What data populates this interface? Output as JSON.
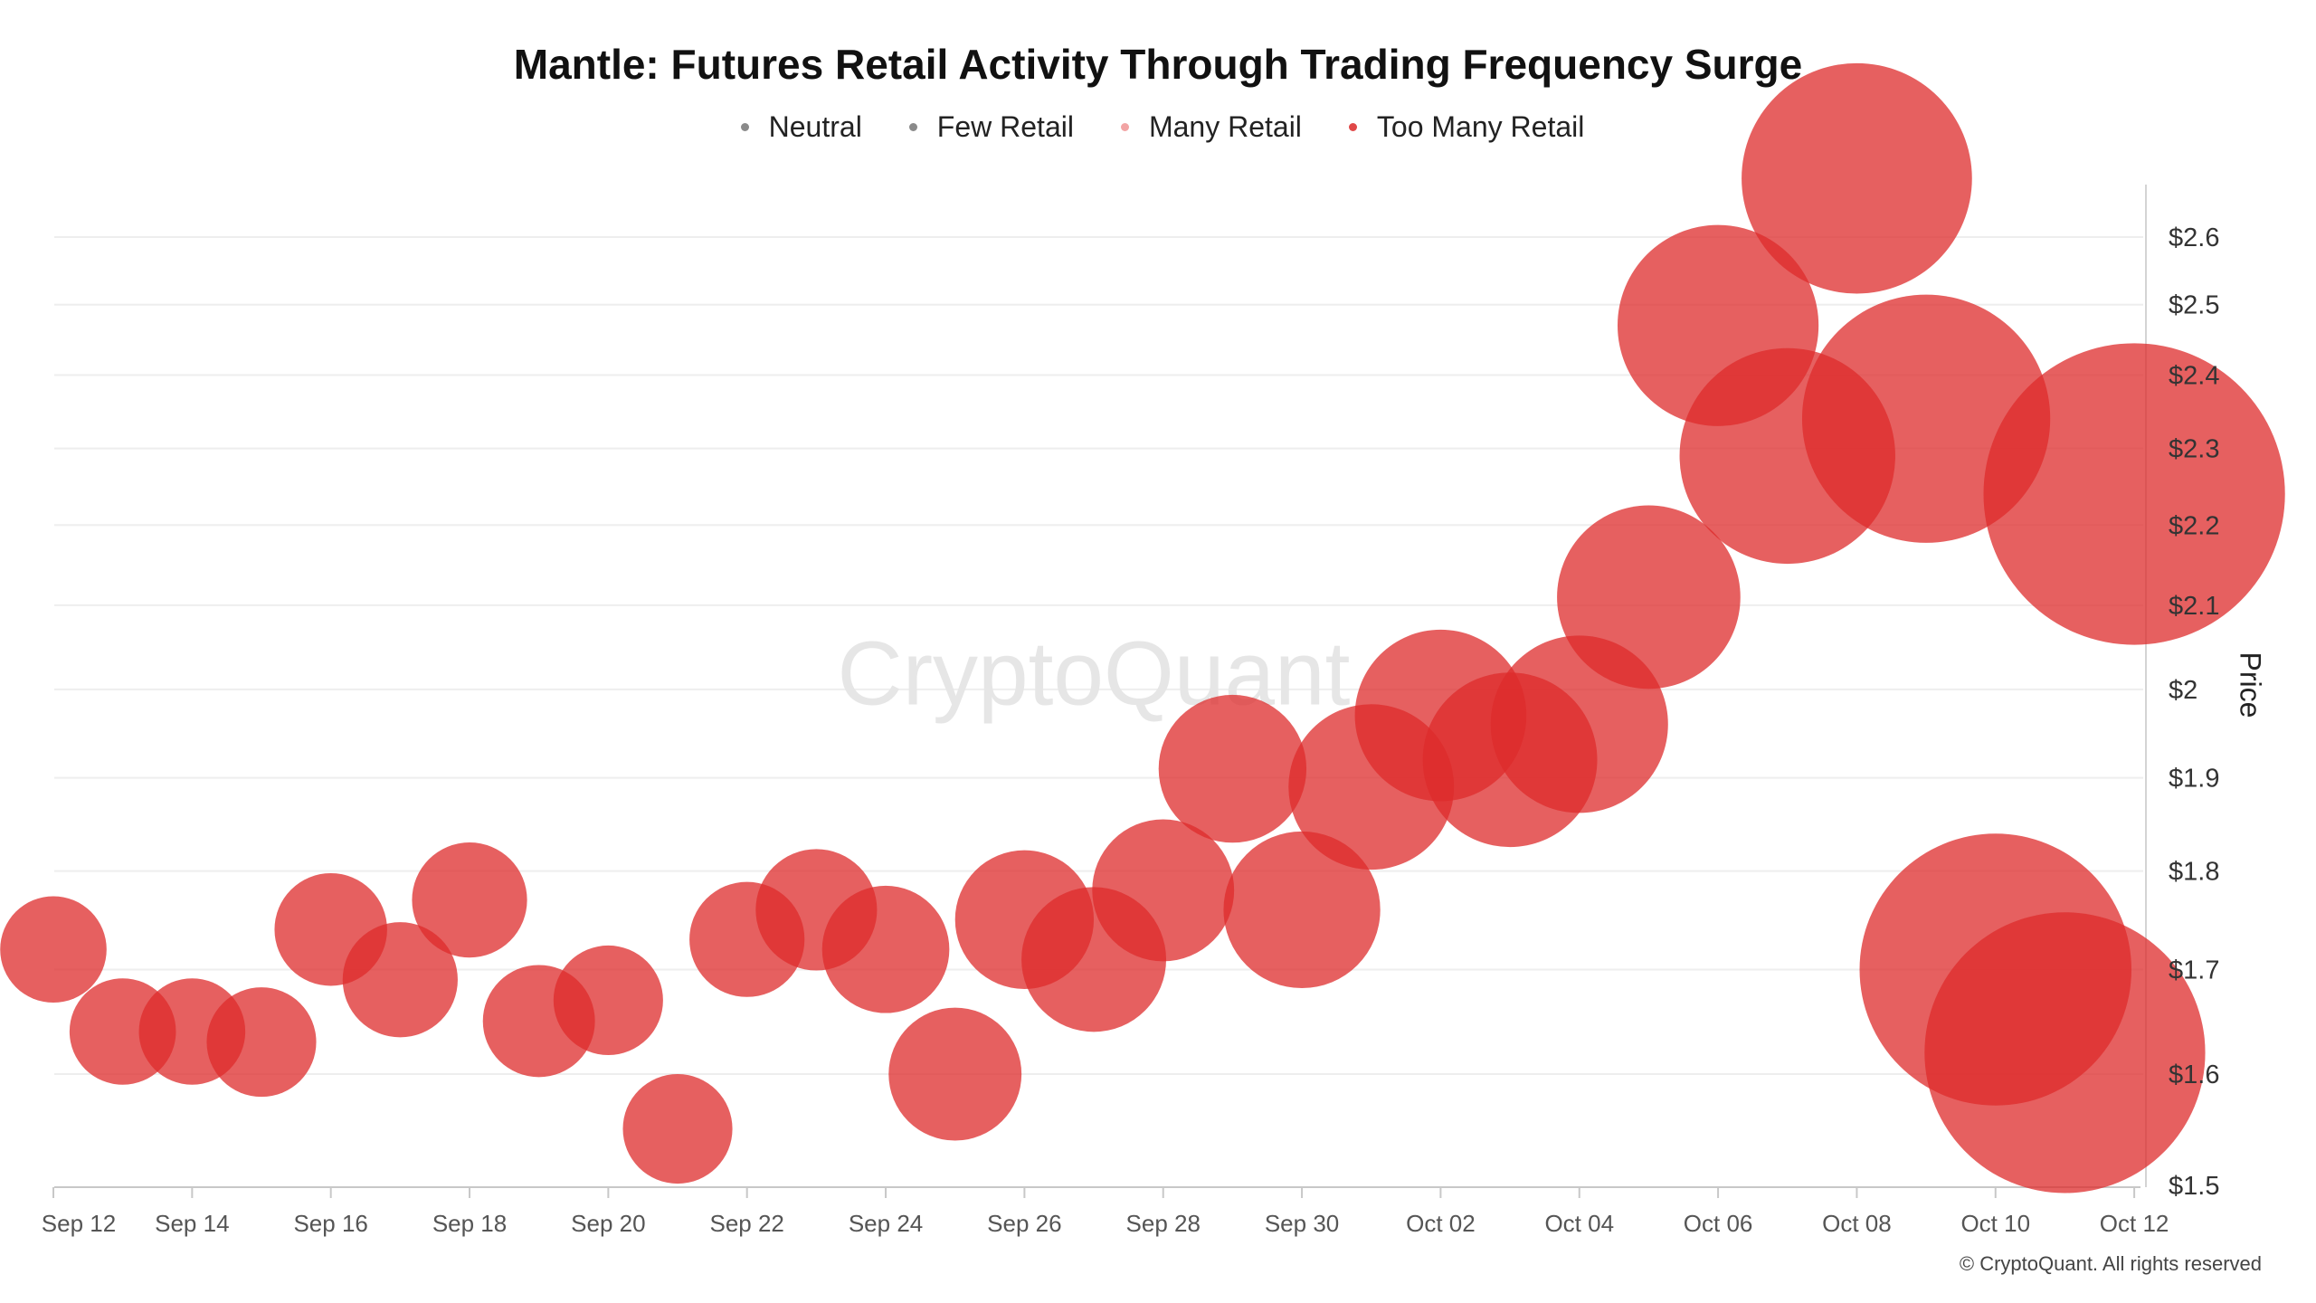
{
  "chart_data": {
    "type": "scatter",
    "title": "Mantle: Futures Retail Activity Through Trading Frequency Surge",
    "legend": [
      {
        "name": "Neutral",
        "color": "#8a8a8a"
      },
      {
        "name": "Few Retail",
        "color": "#8a8a8a"
      },
      {
        "name": "Many Retail",
        "color": "#f2a4a4"
      },
      {
        "name": "Too Many Retail",
        "color": "#e04848"
      }
    ],
    "legend_position": "top-center",
    "xlabel": "",
    "ylabel": "Price",
    "y_axis_side": "right",
    "y_scale": "log",
    "ylim": [
      1.5,
      2.6
    ],
    "y_ticks": [
      1.5,
      1.6,
      1.7,
      1.8,
      1.9,
      2.0,
      2.1,
      2.2,
      2.3,
      2.4,
      2.5,
      2.6
    ],
    "y_tick_labels": [
      "$1.5",
      "$1.6",
      "$1.7",
      "$1.8",
      "$1.9",
      "$2",
      "$2.1",
      "$2.2",
      "$2.3",
      "$2.4",
      "$2.5",
      "$2.6"
    ],
    "x_tick_labels": [
      "Sep 12",
      "Sep 14",
      "Sep 16",
      "Sep 18",
      "Sep 20",
      "Sep 22",
      "Sep 24",
      "Sep 26",
      "Sep 28",
      "Sep 30",
      "Oct 02",
      "Oct 04",
      "Oct 06",
      "Oct 08",
      "Oct 10",
      "Oct 12"
    ],
    "xlim": [
      "Sep 12",
      "Oct 12"
    ],
    "grid": {
      "horizontal": true,
      "vertical": false
    },
    "bubble_color": "#dd2b2b",
    "points": [
      {
        "x": "Sep 12",
        "y": 1.72,
        "size": 100,
        "category": "Too Many Retail"
      },
      {
        "x": "Sep 13",
        "y": 1.64,
        "size": 100,
        "category": "Too Many Retail"
      },
      {
        "x": "Sep 14",
        "y": 1.64,
        "size": 100,
        "category": "Too Many Retail"
      },
      {
        "x": "Sep 15",
        "y": 1.63,
        "size": 106,
        "category": "Too Many Retail"
      },
      {
        "x": "Sep 16",
        "y": 1.74,
        "size": 112,
        "category": "Too Many Retail"
      },
      {
        "x": "Sep 17",
        "y": 1.69,
        "size": 117,
        "category": "Too Many Retail"
      },
      {
        "x": "Sep 18",
        "y": 1.77,
        "size": 117,
        "category": "Too Many Retail"
      },
      {
        "x": "Sep 19",
        "y": 1.65,
        "size": 111,
        "category": "Too Many Retail"
      },
      {
        "x": "Sep 20",
        "y": 1.67,
        "size": 106,
        "category": "Too Many Retail"
      },
      {
        "x": "Sep 21",
        "y": 1.55,
        "size": 106,
        "category": "Too Many Retail"
      },
      {
        "x": "Sep 22",
        "y": 1.73,
        "size": 117,
        "category": "Too Many Retail"
      },
      {
        "x": "Sep 23",
        "y": 1.76,
        "size": 130,
        "category": "Too Many Retail"
      },
      {
        "x": "Sep 24",
        "y": 1.72,
        "size": 143,
        "category": "Too Many Retail"
      },
      {
        "x": "Sep 25",
        "y": 1.6,
        "size": 156,
        "category": "Too Many Retail"
      },
      {
        "x": "Sep 26",
        "y": 1.75,
        "size": 170,
        "category": "Too Many Retail"
      },
      {
        "x": "Sep 27",
        "y": 1.71,
        "size": 185,
        "category": "Too Many Retail"
      },
      {
        "x": "Sep 28",
        "y": 1.78,
        "size": 178,
        "category": "Too Many Retail"
      },
      {
        "x": "Sep 29",
        "y": 1.91,
        "size": 193,
        "category": "Too Many Retail"
      },
      {
        "x": "Sep 30",
        "y": 1.76,
        "size": 217,
        "category": "Too Many Retail"
      },
      {
        "x": "Oct 01",
        "y": 1.89,
        "size": 242,
        "category": "Too Many Retail"
      },
      {
        "x": "Oct 02",
        "y": 1.97,
        "size": 260,
        "category": "Too Many Retail"
      },
      {
        "x": "Oct 03",
        "y": 1.92,
        "size": 269,
        "category": "Too Many Retail"
      },
      {
        "x": "Oct 04",
        "y": 1.96,
        "size": 278,
        "category": "Too Many Retail"
      },
      {
        "x": "Oct 05",
        "y": 2.11,
        "size": 297,
        "category": "Too Many Retail"
      },
      {
        "x": "Oct 06",
        "y": 2.47,
        "size": 357,
        "category": "Too Many Retail"
      },
      {
        "x": "Oct 07",
        "y": 2.29,
        "size": 411,
        "category": "Too Many Retail"
      },
      {
        "x": "Oct 08",
        "y": 2.69,
        "size": 469,
        "category": "Too Many Retail"
      },
      {
        "x": "Oct 09",
        "y": 2.34,
        "size": 544,
        "category": "Too Many Retail"
      },
      {
        "x": "Oct 10",
        "y": 1.7,
        "size": 653,
        "category": "Too Many Retail"
      },
      {
        "x": "Oct 11",
        "y": 1.62,
        "size": 696,
        "category": "Too Many Retail"
      },
      {
        "x": "Oct 12",
        "y": 2.24,
        "size": 803,
        "category": "Too Many Retail"
      }
    ]
  },
  "watermark": "CryptoQuant",
  "footer": "© CryptoQuant. All rights reserved"
}
